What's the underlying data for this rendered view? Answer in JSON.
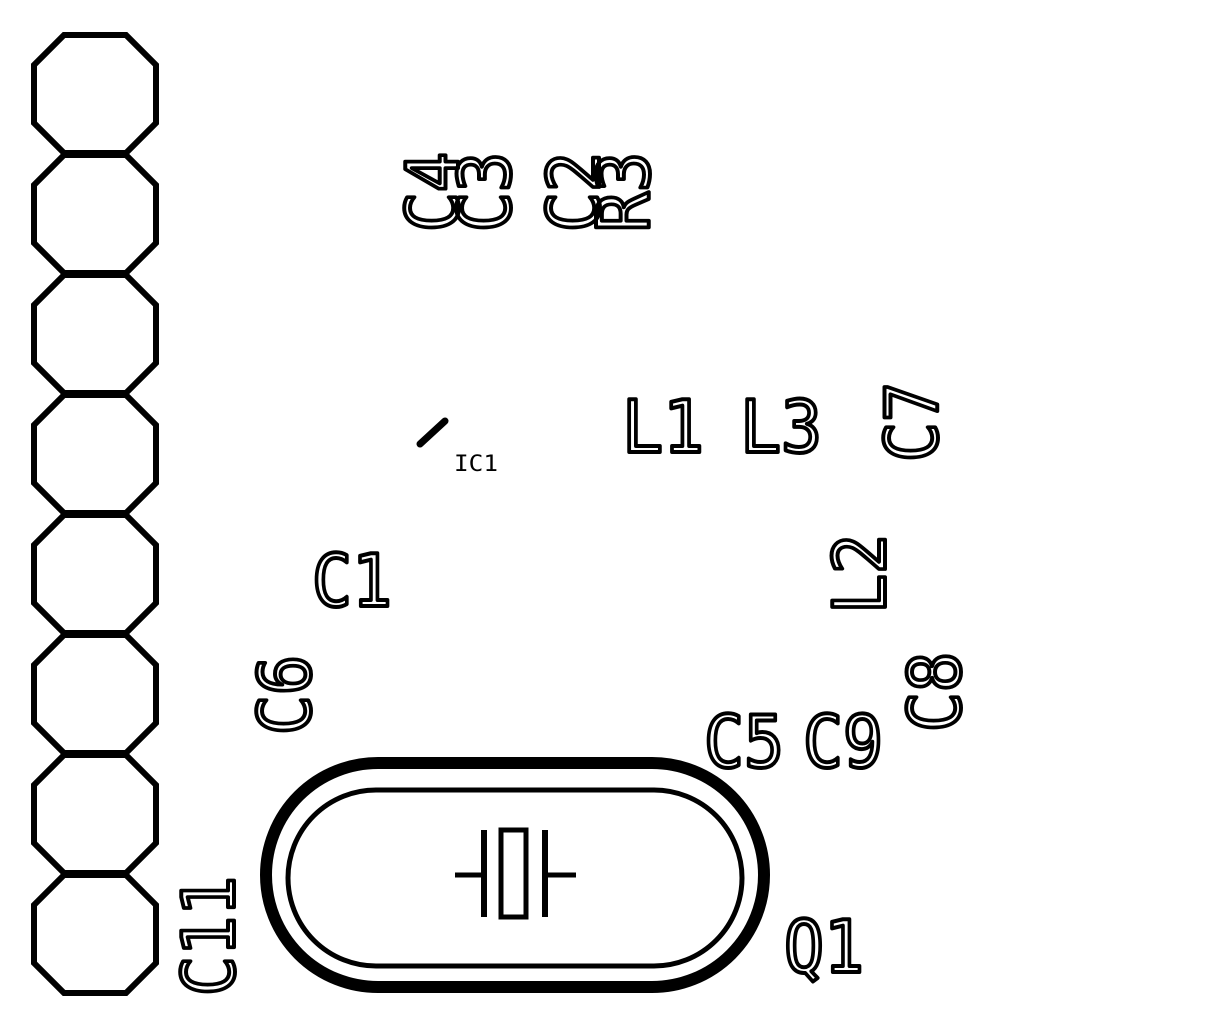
{
  "colors": {
    "background": "#ffffff",
    "silkscreen": "#000000"
  },
  "header": {
    "pads": 8
  },
  "labels": {
    "c4": "C4",
    "c3": "C3",
    "c2": "C2",
    "r3": "R3",
    "l1": "L1",
    "l3": "L3",
    "c7": "C7",
    "ic1": "IC1",
    "c1": "C1",
    "l2": "L2",
    "c6": "C6",
    "c8": "C8",
    "c5": "C5",
    "c9": "C9",
    "c11": "C11",
    "q1": "Q1"
  }
}
